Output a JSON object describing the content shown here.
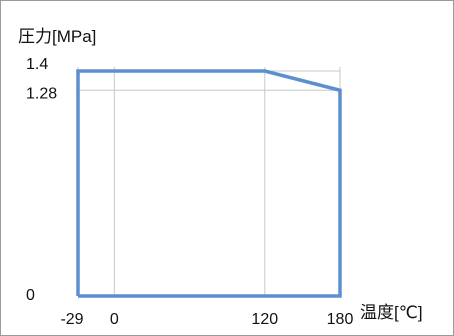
{
  "chart_data": {
    "type": "line",
    "title": "",
    "ylabel": "圧力[MPa]",
    "xlabel": "温度[℃]",
    "x_ticks": [
      -29,
      0,
      120,
      180
    ],
    "y_ticks": [
      0,
      1.28,
      1.4
    ],
    "x_tick_labels": [
      "-29",
      "0",
      "120",
      "180"
    ],
    "y_tick_labels": [
      "0",
      "1.28",
      "1.4"
    ],
    "xlim": [
      -29,
      180
    ],
    "ylim": [
      0,
      1.4
    ],
    "grid": true,
    "series": [
      {
        "x": [
          -29,
          -29,
          120,
          180,
          180,
          -29
        ],
        "y": [
          0,
          1.4,
          1.4,
          1.28,
          0,
          0
        ]
      }
    ],
    "line_color": "#5b8fd0",
    "grid_color": "#c8c8c8"
  }
}
